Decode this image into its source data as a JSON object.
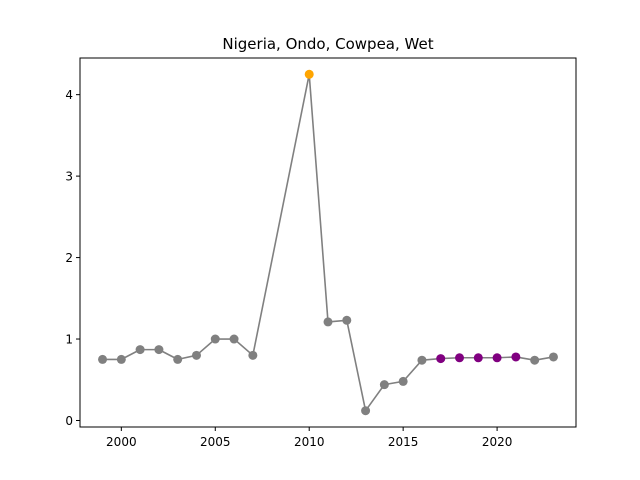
{
  "chart_data": {
    "type": "line",
    "title": "Nigeria, Ondo, Cowpea, Wet",
    "xlabel": "",
    "ylabel": "",
    "xlim": [
      1997.8,
      2024.2
    ],
    "ylim": [
      -0.08,
      4.45
    ],
    "xticks": [
      2000,
      2005,
      2010,
      2015,
      2020
    ],
    "yticks": [
      0,
      1,
      2,
      3,
      4
    ],
    "grid": false,
    "line_color": "#808080",
    "series": [
      {
        "x": [
          1999,
          2000,
          2001,
          2002,
          2003,
          2004,
          2005,
          2006,
          2007,
          2010,
          2011,
          2012,
          2013,
          2014,
          2015,
          2016,
          2017,
          2018,
          2019,
          2020,
          2021,
          2022,
          2023
        ],
        "values": [
          0.75,
          0.75,
          0.87,
          0.87,
          0.75,
          0.8,
          1.0,
          1.0,
          0.8,
          4.25,
          1.21,
          1.23,
          0.12,
          0.44,
          0.48,
          0.74,
          0.76,
          0.77,
          0.77,
          0.77,
          0.78,
          0.74,
          0.78
        ],
        "marker_colors": [
          "#808080",
          "#808080",
          "#808080",
          "#808080",
          "#808080",
          "#808080",
          "#808080",
          "#808080",
          "#808080",
          "#FFA500",
          "#808080",
          "#808080",
          "#808080",
          "#808080",
          "#808080",
          "#808080",
          "#800080",
          "#800080",
          "#800080",
          "#800080",
          "#800080",
          "#808080",
          "#808080"
        ]
      }
    ]
  }
}
